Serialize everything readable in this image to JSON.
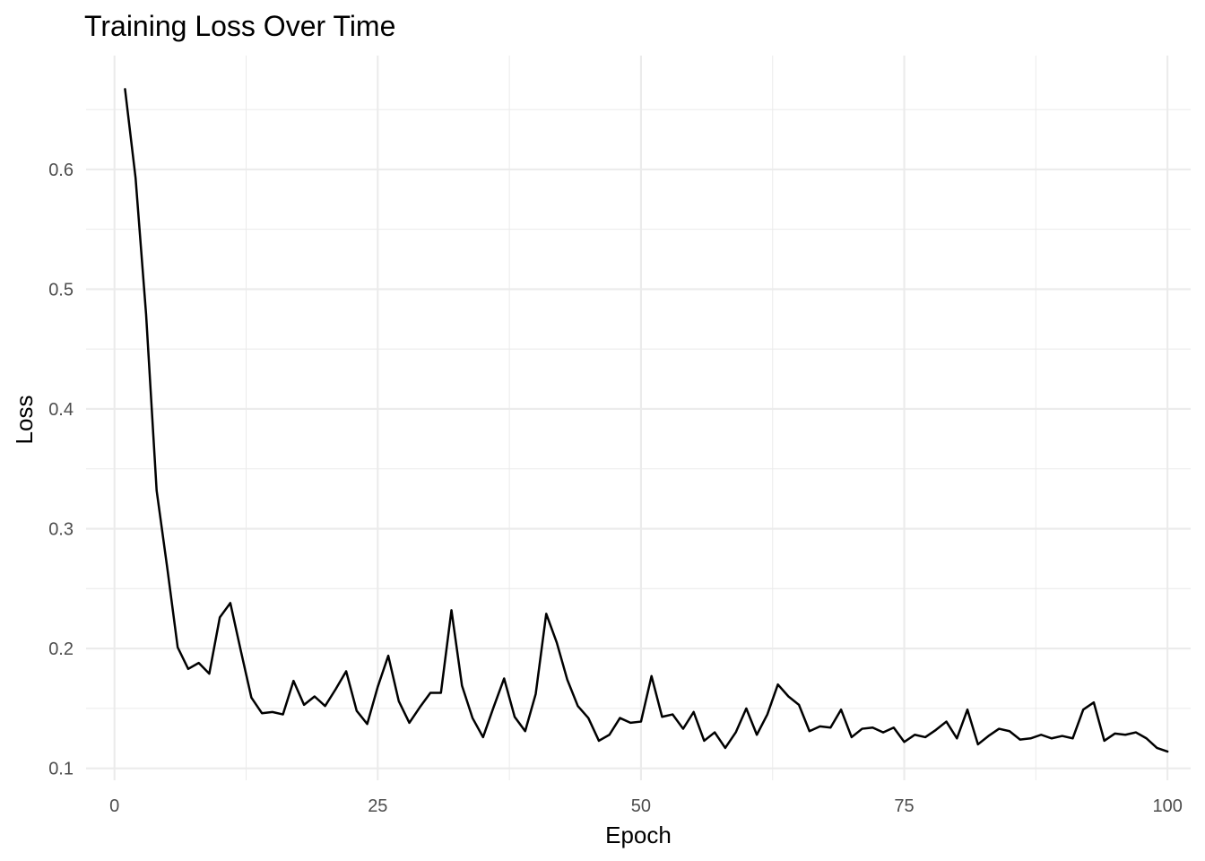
{
  "chart_data": {
    "type": "line",
    "title": "Training Loss Over Time",
    "xlabel": "Epoch",
    "ylabel": "Loss",
    "xlim": [
      -2.7,
      102.2
    ],
    "ylim": [
      0.09,
      0.695
    ],
    "x_ticks": [
      0,
      25,
      50,
      75,
      100
    ],
    "x_tick_labels": [
      "0",
      "25",
      "50",
      "75",
      "100"
    ],
    "x_minor_ticks": [
      12.5,
      37.5,
      62.5,
      87.5
    ],
    "y_ticks": [
      0.1,
      0.2,
      0.3,
      0.4,
      0.5,
      0.6
    ],
    "y_tick_labels": [
      "0.1",
      "0.2",
      "0.3",
      "0.4",
      "0.5",
      "0.6"
    ],
    "y_minor_ticks": [
      0.15,
      0.25,
      0.35,
      0.45,
      0.55,
      0.65
    ],
    "grid": true,
    "legend": "none",
    "series": [
      {
        "color": "#000000",
        "x": [
          1,
          2,
          3,
          4,
          5,
          6,
          7,
          8,
          9,
          10,
          11,
          12,
          13,
          14,
          15,
          16,
          17,
          18,
          19,
          20,
          21,
          22,
          23,
          24,
          25,
          26,
          27,
          28,
          29,
          30,
          31,
          32,
          33,
          34,
          35,
          36,
          37,
          38,
          39,
          40,
          41,
          42,
          43,
          44,
          45,
          46,
          47,
          48,
          49,
          50,
          51,
          52,
          53,
          54,
          55,
          56,
          57,
          58,
          59,
          60,
          61,
          62,
          63,
          64,
          65,
          66,
          67,
          68,
          69,
          70,
          71,
          72,
          73,
          74,
          75,
          76,
          77,
          78,
          79,
          80,
          81,
          82,
          83,
          84,
          85,
          86,
          87,
          88,
          89,
          90,
          91,
          92,
          93,
          94,
          95,
          96,
          97,
          98,
          99,
          100
        ],
        "values": [
          0.667,
          0.593,
          0.479,
          0.332,
          0.268,
          0.201,
          0.183,
          0.188,
          0.179,
          0.226,
          0.238,
          0.198,
          0.159,
          0.146,
          0.147,
          0.145,
          0.173,
          0.153,
          0.16,
          0.152,
          0.166,
          0.181,
          0.148,
          0.137,
          0.168,
          0.194,
          0.156,
          0.138,
          0.151,
          0.163,
          0.163,
          0.232,
          0.169,
          0.142,
          0.126,
          0.151,
          0.175,
          0.143,
          0.131,
          0.162,
          0.229,
          0.205,
          0.174,
          0.152,
          0.142,
          0.123,
          0.128,
          0.142,
          0.138,
          0.139,
          0.177,
          0.143,
          0.145,
          0.133,
          0.147,
          0.123,
          0.13,
          0.117,
          0.13,
          0.15,
          0.128,
          0.145,
          0.17,
          0.16,
          0.153,
          0.131,
          0.135,
          0.134,
          0.149,
          0.126,
          0.133,
          0.134,
          0.13,
          0.134,
          0.122,
          0.128,
          0.126,
          0.132,
          0.139,
          0.125,
          0.149,
          0.12,
          0.127,
          0.133,
          0.131,
          0.124,
          0.125,
          0.128,
          0.125,
          0.127,
          0.125,
          0.149,
          0.155,
          0.123,
          0.129,
          0.128,
          0.13,
          0.125,
          0.117,
          0.114
        ]
      }
    ]
  }
}
